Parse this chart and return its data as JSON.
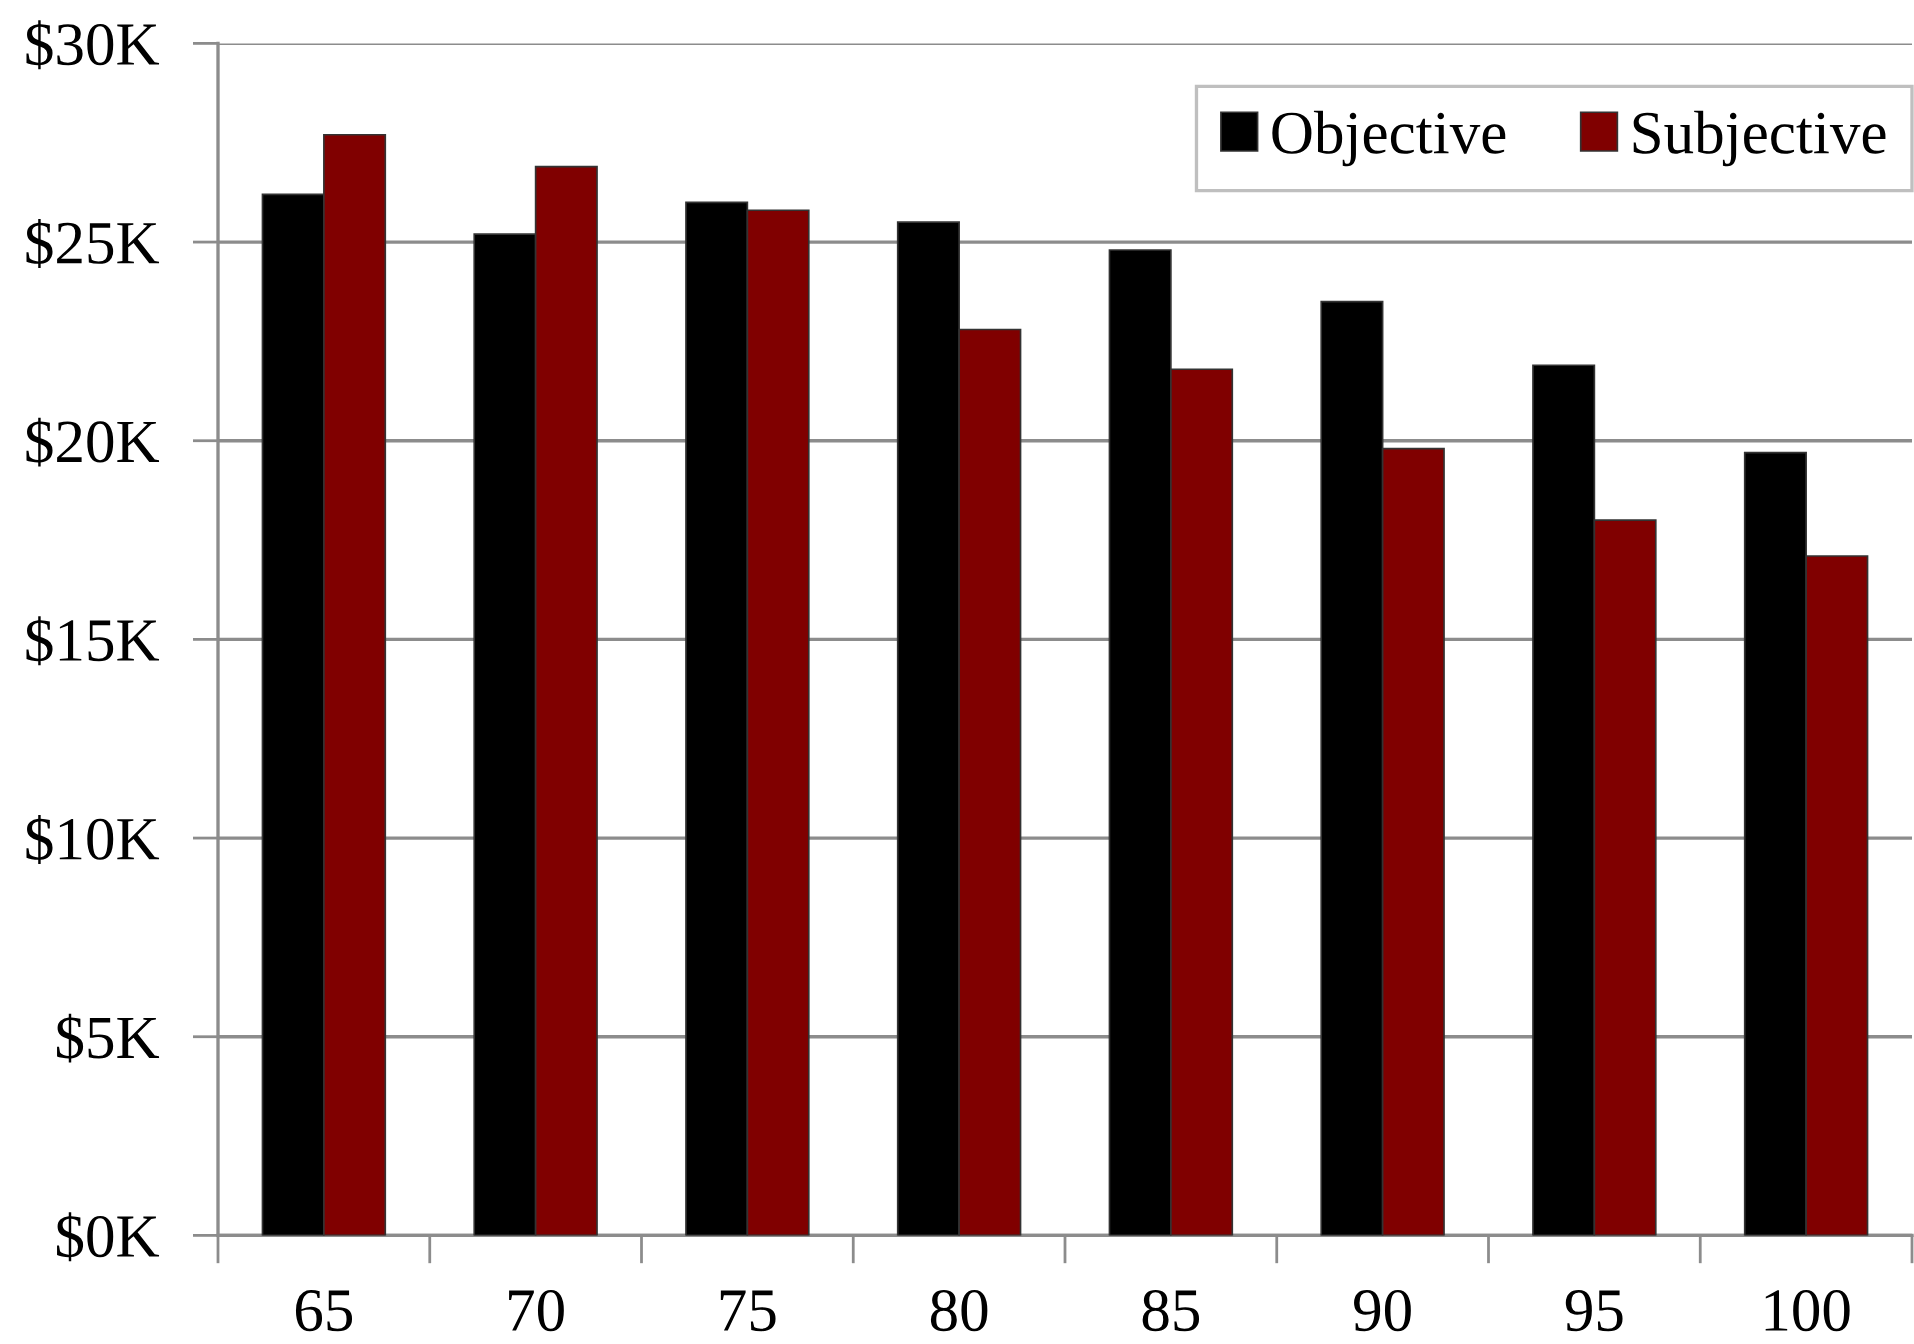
{
  "chart_data": {
    "type": "bar",
    "categories": [
      "65",
      "70",
      "75",
      "80",
      "85",
      "90",
      "95",
      "100"
    ],
    "series": [
      {
        "name": "Objective",
        "color": "#000000",
        "values": [
          26.2,
          25.2,
          26.0,
          25.5,
          24.8,
          23.5,
          21.9,
          19.7
        ]
      },
      {
        "name": "Subjective",
        "color": "#800000",
        "values": [
          27.7,
          26.9,
          25.8,
          22.8,
          21.8,
          19.8,
          18.0,
          17.1
        ]
      }
    ],
    "ylim": [
      0,
      30
    ],
    "yticks": [
      {
        "value": 0,
        "label": "$0K"
      },
      {
        "value": 5,
        "label": "$5K"
      },
      {
        "value": 10,
        "label": "$10K"
      },
      {
        "value": 15,
        "label": "$15K"
      },
      {
        "value": 20,
        "label": "$20K"
      },
      {
        "value": 25,
        "label": "$25K"
      },
      {
        "value": 30,
        "label": "$30K"
      }
    ],
    "grid": "y",
    "legend": "top right"
  }
}
